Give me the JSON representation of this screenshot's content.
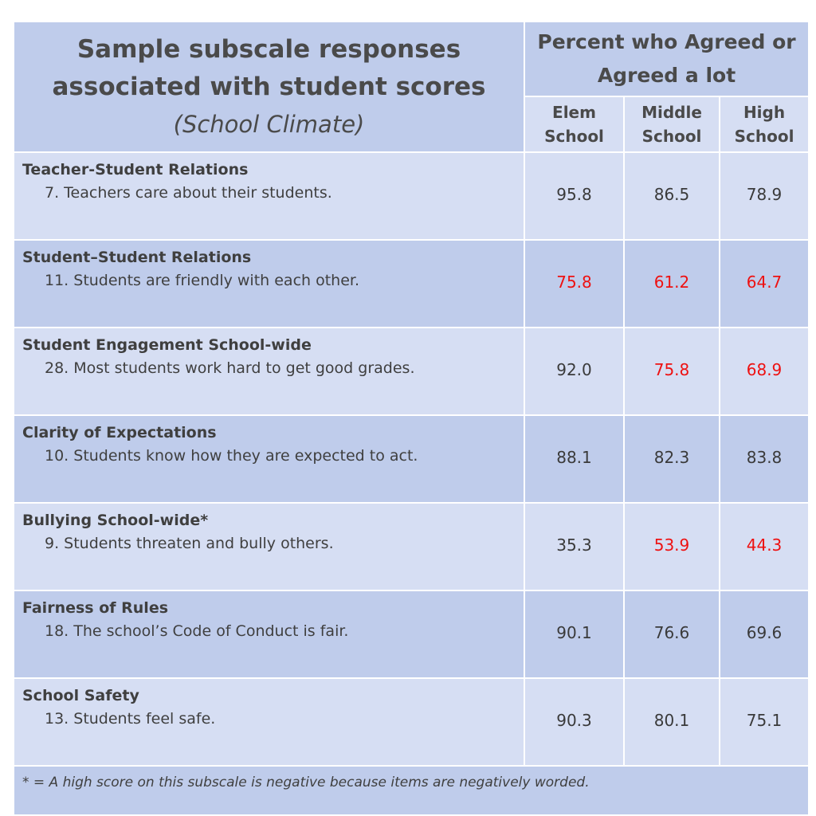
{
  "header": {
    "title_line1": "Sample subscale responses",
    "title_line2": "associated with student scores",
    "title_line3": "(School Climate)",
    "percent_header": "Percent who Agreed or Agreed a lot",
    "col_elem": "Elem School",
    "col_middle": "Middle School",
    "col_high": "High School"
  },
  "rows": [
    {
      "category": "Teacher-Student Relations",
      "item": "7. Teachers care about their students.",
      "elem": "95.8",
      "middle": "86.5",
      "high": "78.9",
      "red": [
        false,
        false,
        false
      ]
    },
    {
      "category": "Student–Student Relations",
      "item": "11. Students are friendly with each other.",
      "elem": "75.8",
      "middle": "61.2",
      "high": "64.7",
      "red": [
        true,
        true,
        true
      ]
    },
    {
      "category": "Student Engagement School-wide",
      "item": "28.  Most students work hard to get good grades.",
      "elem": "92.0",
      "middle": "75.8",
      "high": "68.9",
      "red": [
        false,
        true,
        true
      ]
    },
    {
      "category": "Clarity of Expectations",
      "item": "10. Students know how they are expected to act.",
      "elem": "88.1",
      "middle": "82.3",
      "high": "83.8",
      "red": [
        false,
        false,
        false
      ]
    },
    {
      "category": "Bullying School-wide*",
      "item": "9. Students threaten and bully others.",
      "elem": "35.3",
      "middle": "53.9",
      "high": "44.3",
      "red": [
        false,
        true,
        true
      ]
    },
    {
      "category": "Fairness of Rules",
      "item": "18. The school’s Code of Conduct is fair.",
      "elem": "90.1",
      "middle": "76.6",
      "high": "69.6",
      "red": [
        false,
        false,
        false
      ]
    },
    {
      "category": "School Safety",
      "item": "13. Students feel safe.",
      "elem": "90.3",
      "middle": "80.1",
      "high": "75.1",
      "red": [
        false,
        false,
        false
      ]
    }
  ],
  "footnote": "* = A high score on this subscale is negative because items are negatively worded.",
  "colors": {
    "highlight": "#ee1111",
    "header_bg": "#bfcceb",
    "row_light": "#d6def3"
  }
}
